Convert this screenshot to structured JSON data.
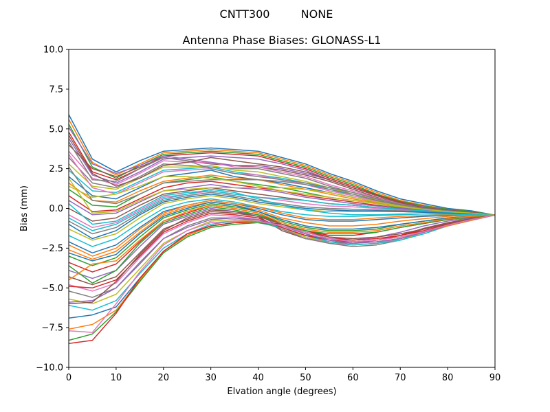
{
  "figure": {
    "suptitle_left": "CNTT300",
    "suptitle_right": "NONE"
  },
  "chart_data": {
    "type": "line",
    "title": "Antenna Phase Biases: GLONASS-L1",
    "xlabel": "Elvation angle (degrees)",
    "ylabel": "Bias (mm)",
    "xlim": [
      0,
      90
    ],
    "ylim": [
      -10,
      10
    ],
    "xticks": [
      0,
      10,
      20,
      30,
      40,
      50,
      60,
      70,
      80,
      90
    ],
    "xtick_labels": [
      "0",
      "10",
      "20",
      "30",
      "40",
      "50",
      "60",
      "70",
      "80",
      "90"
    ],
    "yticks": [
      -10,
      -7.5,
      -5,
      -2.5,
      0,
      2.5,
      5,
      7.5,
      10
    ],
    "ytick_labels": [
      "−10.0",
      "−7.5",
      "−5.0",
      "−2.5",
      "0.0",
      "2.5",
      "5.0",
      "7.5",
      "10.0"
    ],
    "grid": false,
    "legend": "none",
    "palette": [
      "#1f77b4",
      "#ff7f0e",
      "#2ca02c",
      "#d62728",
      "#9467bd",
      "#8c564b",
      "#e377c2",
      "#7f7f7f",
      "#bcbd22",
      "#17becf"
    ],
    "x": [
      0,
      5,
      10,
      15,
      20,
      25,
      30,
      35,
      40,
      45,
      50,
      55,
      60,
      65,
      70,
      75,
      80,
      85,
      90
    ],
    "series": [
      {
        "values": [
          5.9,
          3.1,
          2.3,
          3.0,
          3.6,
          3.7,
          3.8,
          3.7,
          3.6,
          3.2,
          2.8,
          2.2,
          1.7,
          1.1,
          0.6,
          0.3,
          0.0,
          -0.15,
          -0.42
        ]
      },
      {
        "values": [
          5.6,
          2.9,
          2.1,
          2.8,
          3.5,
          3.6,
          3.7,
          3.6,
          3.5,
          3.1,
          2.7,
          2.1,
          1.6,
          1.0,
          0.5,
          0.2,
          -0.05,
          -0.2,
          -0.42
        ]
      },
      {
        "values": [
          5.3,
          2.6,
          1.9,
          2.7,
          3.4,
          3.5,
          3.6,
          3.5,
          3.4,
          3.0,
          2.6,
          2.0,
          1.5,
          0.9,
          0.45,
          0.15,
          -0.05,
          -0.2,
          -0.42
        ]
      },
      {
        "values": [
          4.8,
          2.3,
          1.8,
          2.5,
          3.3,
          3.4,
          3.5,
          3.4,
          3.3,
          2.9,
          2.5,
          1.9,
          1.4,
          0.85,
          0.4,
          0.1,
          -0.1,
          -0.25,
          -0.42
        ]
      },
      {
        "values": [
          4.4,
          2.1,
          1.6,
          2.3,
          3.1,
          3.2,
          3.3,
          3.2,
          3.1,
          2.8,
          2.4,
          1.8,
          1.3,
          0.8,
          0.35,
          0.1,
          -0.1,
          -0.25,
          -0.42
        ]
      },
      {
        "values": [
          4.0,
          2.5,
          2.0,
          2.6,
          3.2,
          3.0,
          2.8,
          2.7,
          2.6,
          2.4,
          2.1,
          1.7,
          1.2,
          0.7,
          0.3,
          0.05,
          -0.1,
          -0.25,
          -0.42
        ]
      },
      {
        "values": [
          3.6,
          1.9,
          1.5,
          2.2,
          3.0,
          2.9,
          2.9,
          2.6,
          2.6,
          2.3,
          2.0,
          1.5,
          1.1,
          0.65,
          0.3,
          0.05,
          -0.1,
          -0.25,
          -0.42
        ]
      },
      {
        "values": [
          3.2,
          1.6,
          1.3,
          2.0,
          2.8,
          2.7,
          2.6,
          2.5,
          2.5,
          2.2,
          1.9,
          1.4,
          1.0,
          0.6,
          0.25,
          0.0,
          -0.15,
          -0.3,
          -0.42
        ]
      },
      {
        "values": [
          2.8,
          1.4,
          1.2,
          1.9,
          2.6,
          2.6,
          2.7,
          2.4,
          2.3,
          2.0,
          1.7,
          1.3,
          0.9,
          0.55,
          0.2,
          0.0,
          -0.15,
          -0.3,
          -0.42
        ]
      },
      {
        "values": [
          2.4,
          1.1,
          1.0,
          1.7,
          2.4,
          2.5,
          2.6,
          2.3,
          2.1,
          1.9,
          1.6,
          1.2,
          0.8,
          0.5,
          0.2,
          -0.05,
          -0.15,
          -0.3,
          -0.42
        ]
      },
      {
        "values": [
          2.0,
          0.8,
          0.6,
          1.3,
          2.0,
          2.2,
          2.4,
          2.0,
          1.8,
          1.6,
          1.3,
          1.0,
          0.7,
          0.4,
          0.15,
          -0.05,
          -0.2,
          -0.3,
          -0.42
        ]
      },
      {
        "values": [
          1.6,
          0.5,
          0.4,
          1.1,
          1.7,
          1.9,
          2.1,
          1.9,
          1.8,
          1.5,
          1.2,
          0.9,
          0.6,
          0.35,
          0.1,
          -0.05,
          -0.2,
          -0.3,
          -0.42
        ]
      },
      {
        "values": [
          1.2,
          0.2,
          0.1,
          0.9,
          1.6,
          1.8,
          2.0,
          1.7,
          1.5,
          1.3,
          1.0,
          0.7,
          0.5,
          0.3,
          0.05,
          -0.1,
          -0.2,
          -0.3,
          -0.42
        ]
      },
      {
        "values": [
          0.8,
          -0.2,
          -0.1,
          0.6,
          1.3,
          1.6,
          1.7,
          1.5,
          1.3,
          1.1,
          0.8,
          0.6,
          0.4,
          0.2,
          0.0,
          -0.1,
          -0.2,
          -0.35,
          -0.42
        ]
      },
      {
        "values": [
          0.5,
          -0.4,
          -0.3,
          0.4,
          1.1,
          1.3,
          1.5,
          1.3,
          1.2,
          1.0,
          0.7,
          0.5,
          0.3,
          0.15,
          0.0,
          -0.1,
          -0.25,
          -0.35,
          -0.42
        ]
      },
      {
        "values": [
          0.0,
          -0.8,
          -0.6,
          0.2,
          0.9,
          1.1,
          1.3,
          1.1,
          0.9,
          0.7,
          0.5,
          0.3,
          0.2,
          0.05,
          -0.05,
          -0.15,
          -0.25,
          -0.35,
          -0.42
        ]
      },
      {
        "values": [
          -0.4,
          -1.2,
          -0.9,
          -0.1,
          0.7,
          0.9,
          1.1,
          0.9,
          0.7,
          0.5,
          0.3,
          0.15,
          0.1,
          0.0,
          -0.1,
          -0.15,
          -0.25,
          -0.35,
          -0.42
        ]
      },
      {
        "values": [
          -0.8,
          -1.6,
          -1.2,
          -0.3,
          0.5,
          0.8,
          1.0,
          0.8,
          0.5,
          0.3,
          0.1,
          0.0,
          -0.05,
          -0.1,
          -0.15,
          -0.2,
          -0.3,
          -0.35,
          -0.42
        ]
      },
      {
        "values": [
          -1.3,
          -2.0,
          -1.6,
          -0.6,
          0.3,
          0.6,
          0.8,
          0.6,
          0.3,
          0.1,
          -0.1,
          -0.2,
          -0.2,
          -0.2,
          -0.2,
          -0.25,
          -0.3,
          -0.35,
          -0.42
        ]
      },
      {
        "values": [
          -1.7,
          -2.4,
          -1.9,
          -0.9,
          0.0,
          0.4,
          0.6,
          0.4,
          0.1,
          -0.2,
          -0.4,
          -0.5,
          -0.5,
          -0.45,
          -0.4,
          -0.35,
          -0.35,
          -0.4,
          -0.42
        ]
      },
      {
        "values": [
          -2.1,
          -2.8,
          -2.3,
          -1.2,
          -0.2,
          0.2,
          0.5,
          0.3,
          0.0,
          -0.4,
          -0.7,
          -0.8,
          -0.8,
          -0.7,
          -0.6,
          -0.5,
          -0.45,
          -0.4,
          -0.42
        ]
      },
      {
        "values": [
          -2.6,
          -3.2,
          -2.7,
          -1.5,
          -0.4,
          0.1,
          0.4,
          0.2,
          -0.1,
          -0.6,
          -0.9,
          -1.1,
          -1.1,
          -1.0,
          -0.8,
          -0.65,
          -0.5,
          -0.45,
          -0.42
        ]
      },
      {
        "values": [
          -3.0,
          -3.6,
          -3.1,
          -1.8,
          -0.6,
          -0.1,
          0.3,
          0.1,
          -0.2,
          -0.8,
          -1.2,
          -1.4,
          -1.4,
          -1.3,
          -1.0,
          -0.8,
          -0.6,
          -0.5,
          -0.42
        ]
      },
      {
        "values": [
          -3.4,
          -4.0,
          -3.5,
          -2.1,
          -0.8,
          -0.3,
          0.2,
          0.0,
          -0.3,
          -1.0,
          -1.4,
          -1.7,
          -1.7,
          -1.5,
          -1.2,
          -0.95,
          -0.7,
          -0.55,
          -0.42
        ]
      },
      {
        "values": [
          -3.9,
          -4.4,
          -3.9,
          -2.4,
          -1.0,
          -0.5,
          0.0,
          -0.2,
          -0.4,
          -1.2,
          -1.7,
          -1.9,
          -2.0,
          -1.8,
          -1.5,
          -1.1,
          -0.8,
          -0.6,
          -0.42
        ]
      },
      {
        "values": [
          -4.3,
          -4.8,
          -4.3,
          -2.8,
          -1.3,
          -0.7,
          -0.2,
          -0.3,
          -0.5,
          -1.4,
          -1.9,
          -2.1,
          -2.2,
          -2.0,
          -1.7,
          -1.25,
          -0.9,
          -0.65,
          -0.42
        ]
      },
      {
        "values": [
          -4.8,
          -5.2,
          -4.7,
          -3.1,
          -1.6,
          -0.9,
          -0.4,
          -0.5,
          -0.7,
          -1.3,
          -1.8,
          -2.2,
          -2.3,
          -2.2,
          -1.9,
          -1.4,
          -1.0,
          -0.7,
          -0.42
        ]
      },
      {
        "values": [
          -5.2,
          -5.6,
          -5.0,
          -3.5,
          -1.9,
          -1.1,
          -0.6,
          -0.6,
          -0.8,
          -1.3,
          -1.9,
          -2.2,
          -2.4,
          -2.3,
          -2.0,
          -1.5,
          -1.0,
          -0.7,
          -0.42
        ]
      },
      {
        "values": [
          -5.7,
          -6.0,
          -5.4,
          -3.8,
          -2.2,
          -1.4,
          -0.8,
          -0.7,
          -0.8,
          -1.2,
          -1.8,
          -2.1,
          -2.3,
          -2.2,
          -2.0,
          -1.5,
          -1.05,
          -0.7,
          -0.42
        ]
      },
      {
        "values": [
          -6.1,
          -6.4,
          -5.8,
          -4.1,
          -2.5,
          -1.6,
          -1.0,
          -0.8,
          -0.9,
          -1.2,
          -1.7,
          -2.1,
          -2.3,
          -2.2,
          -2.0,
          -1.6,
          -1.1,
          -0.75,
          -0.42
        ]
      },
      {
        "values": [
          -6.9,
          -6.7,
          -6.2,
          -4.4,
          -2.7,
          -1.7,
          -1.1,
          -0.9,
          -0.9,
          -1.1,
          -1.6,
          -2.0,
          -2.2,
          -2.1,
          -1.9,
          -1.5,
          -1.1,
          -0.75,
          -0.42
        ]
      },
      {
        "values": [
          -7.6,
          -7.3,
          -6.4,
          -4.5,
          -2.7,
          -1.7,
          -1.1,
          -0.9,
          -0.9,
          -1.1,
          -1.6,
          -2.0,
          -2.2,
          -2.1,
          -1.9,
          -1.5,
          -1.1,
          -0.75,
          -0.42
        ]
      },
      {
        "values": [
          -8.3,
          -7.9,
          -6.5,
          -4.6,
          -2.8,
          -1.8,
          -1.2,
          -1.0,
          -0.9,
          -1.1,
          -1.5,
          -1.9,
          -2.1,
          -2.0,
          -1.8,
          -1.45,
          -1.05,
          -0.7,
          -0.42
        ]
      },
      {
        "values": [
          -8.5,
          -8.3,
          -6.6,
          -4.4,
          -2.7,
          -1.6,
          -1.1,
          -0.9,
          -0.8,
          -1.0,
          -1.4,
          -1.8,
          -2.0,
          -1.9,
          -1.7,
          -1.4,
          -1.0,
          -0.7,
          -0.42
        ]
      },
      {
        "values": [
          5.1,
          2.8,
          2.2,
          2.7,
          3.3,
          3.1,
          2.9,
          2.7,
          2.7,
          2.5,
          2.2,
          1.8,
          1.3,
          0.8,
          0.35,
          0.1,
          -0.1,
          -0.25,
          -0.42
        ]
      },
      {
        "values": [
          4.6,
          2.2,
          1.4,
          1.9,
          2.7,
          2.9,
          3.2,
          3.0,
          2.8,
          2.6,
          2.3,
          1.8,
          1.3,
          0.8,
          0.35,
          0.05,
          -0.1,
          -0.25,
          -0.42
        ]
      },
      {
        "values": [
          3.4,
          1.3,
          0.9,
          1.6,
          2.3,
          2.4,
          2.5,
          2.2,
          2.1,
          1.8,
          1.5,
          1.1,
          0.8,
          0.45,
          0.15,
          -0.05,
          -0.15,
          -0.3,
          -0.42
        ]
      },
      {
        "values": [
          2.6,
          0.5,
          0.3,
          0.9,
          1.6,
          1.7,
          1.8,
          1.8,
          1.8,
          1.7,
          1.5,
          1.2,
          0.9,
          0.5,
          0.2,
          0.0,
          -0.15,
          -0.3,
          -0.42
        ]
      },
      {
        "values": [
          1.9,
          -0.3,
          -0.2,
          0.5,
          1.1,
          1.2,
          1.3,
          1.3,
          1.3,
          1.3,
          1.2,
          1.0,
          0.7,
          0.4,
          0.15,
          -0.05,
          -0.2,
          -0.3,
          -0.42
        ]
      },
      {
        "values": [
          0.3,
          -1.0,
          -0.8,
          0.0,
          0.8,
          1.0,
          1.1,
          0.9,
          0.7,
          0.6,
          0.5,
          0.3,
          0.2,
          0.05,
          -0.05,
          -0.15,
          -0.25,
          -0.35,
          -0.42
        ]
      },
      {
        "values": [
          -1.0,
          -1.9,
          -1.4,
          -0.4,
          0.4,
          0.7,
          0.9,
          0.7,
          0.4,
          0.2,
          0.0,
          -0.1,
          -0.15,
          -0.15,
          -0.2,
          -0.25,
          -0.3,
          -0.35,
          -0.42
        ]
      },
      {
        "values": [
          -2.3,
          -3.0,
          -2.5,
          -1.3,
          -0.3,
          0.2,
          0.5,
          0.3,
          0.1,
          -0.3,
          -0.6,
          -0.7,
          -0.7,
          -0.6,
          -0.5,
          -0.45,
          -0.4,
          -0.4,
          -0.42
        ]
      },
      {
        "values": [
          -3.6,
          -4.7,
          -3.9,
          -2.2,
          -0.9,
          -0.4,
          0.1,
          -0.1,
          -0.4,
          -1.0,
          -1.4,
          -1.6,
          -1.6,
          -1.5,
          -1.2,
          -0.95,
          -0.7,
          -0.55,
          -0.42
        ]
      },
      {
        "values": [
          -4.9,
          -5.0,
          -4.5,
          -3.0,
          -1.5,
          -0.8,
          -0.3,
          -0.4,
          -0.6,
          -1.2,
          -1.7,
          -2.0,
          -2.1,
          -2.0,
          -1.7,
          -1.3,
          -0.95,
          -0.65,
          -0.42
        ]
      },
      {
        "values": [
          -5.9,
          -5.8,
          -5.0,
          -3.4,
          -1.9,
          -1.2,
          -0.7,
          -0.6,
          -0.7,
          -1.1,
          -1.6,
          -2.0,
          -2.2,
          -2.1,
          -1.9,
          -1.5,
          -1.05,
          -0.7,
          -0.42
        ]
      },
      {
        "values": [
          -6.0,
          -5.9,
          -4.6,
          -2.9,
          -1.4,
          -0.6,
          -0.1,
          -0.2,
          -0.5,
          -1.0,
          -1.5,
          -1.8,
          -1.9,
          -1.8,
          -1.6,
          -1.3,
          -0.95,
          -0.65,
          -0.42
        ]
      },
      {
        "values": [
          -7.7,
          -7.8,
          -6.0,
          -4.0,
          -2.3,
          -1.4,
          -0.9,
          -0.8,
          -0.8,
          -1.1,
          -1.5,
          -1.9,
          -2.1,
          -2.0,
          -1.8,
          -1.45,
          -1.05,
          -0.7,
          -0.42
        ]
      },
      {
        "values": [
          4.2,
          1.8,
          1.7,
          2.5,
          3.2,
          3.0,
          2.5,
          2.2,
          2.0,
          1.8,
          1.6,
          1.3,
          1.0,
          0.6,
          0.25,
          0.0,
          -0.15,
          -0.3,
          -0.42
        ]
      },
      {
        "values": [
          1.4,
          0.7,
          0.9,
          1.4,
          2.0,
          2.0,
          1.9,
          1.7,
          1.4,
          1.1,
          0.9,
          0.7,
          0.5,
          0.3,
          0.1,
          -0.05,
          -0.2,
          -0.3,
          -0.42
        ]
      },
      {
        "values": [
          -0.6,
          -1.4,
          -1.0,
          -0.2,
          0.6,
          0.9,
          1.2,
          1.0,
          0.6,
          0.2,
          -0.1,
          -0.3,
          -0.4,
          -0.4,
          -0.35,
          -0.35,
          -0.35,
          -0.4,
          -0.42
        ]
      },
      {
        "values": [
          -2.8,
          -3.3,
          -2.9,
          -1.6,
          -0.5,
          0.0,
          0.4,
          0.2,
          -0.2,
          -0.7,
          -1.1,
          -1.3,
          -1.3,
          -1.2,
          -1.0,
          -0.8,
          -0.6,
          -0.5,
          -0.42
        ]
      },
      {
        "values": [
          -4.5,
          -3.5,
          -3.3,
          -2.0,
          -0.8,
          -0.2,
          0.2,
          0.0,
          -0.3,
          -0.9,
          -1.3,
          -1.5,
          -1.5,
          -1.4,
          -1.1,
          -0.9,
          -0.65,
          -0.5,
          -0.42
        ]
      }
    ]
  }
}
